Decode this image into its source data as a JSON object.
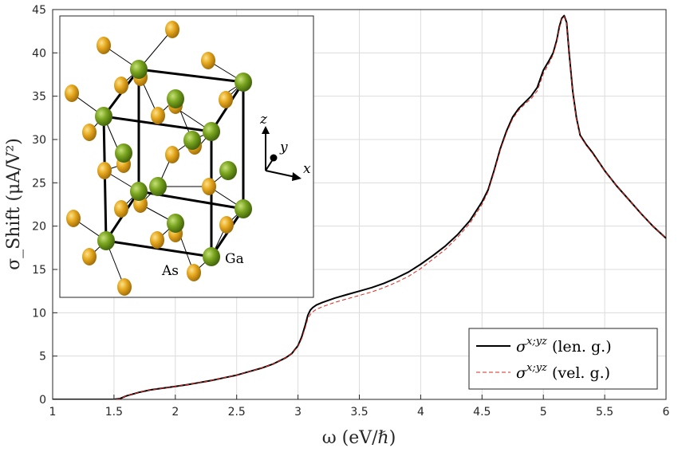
{
  "chart_data": {
    "type": "line",
    "title": "",
    "xlabel": "ω (eV/ℏ)",
    "ylabel": "σ_Shift (μA/V²)",
    "xlim": [
      1,
      6
    ],
    "ylim": [
      0,
      45
    ],
    "x_ticks": [
      "1",
      "1.5",
      "2",
      "2.5",
      "3",
      "3.5",
      "4",
      "4.5",
      "5",
      "5.5",
      "6"
    ],
    "y_ticks": [
      "0",
      "5",
      "10",
      "15",
      "20",
      "25",
      "30",
      "35",
      "40",
      "45"
    ],
    "grid": true,
    "legend_position": "bottom-right",
    "series": [
      {
        "name": "σ^{x;yz} (len. g.)",
        "legend_main": "σ",
        "legend_sup": "x;yz",
        "legend_tail": "(len. g.)",
        "style": "solid",
        "color": "#000000",
        "x": [
          1.0,
          1.5,
          1.55,
          1.6,
          1.7,
          1.8,
          1.9,
          2.0,
          2.1,
          2.2,
          2.3,
          2.4,
          2.5,
          2.6,
          2.7,
          2.8,
          2.9,
          2.95,
          3.0,
          3.03,
          3.06,
          3.08,
          3.1,
          3.12,
          3.15,
          3.2,
          3.3,
          3.4,
          3.5,
          3.6,
          3.7,
          3.8,
          3.9,
          4.0,
          4.1,
          4.2,
          4.3,
          4.4,
          4.5,
          4.55,
          4.6,
          4.65,
          4.7,
          4.75,
          4.8,
          4.85,
          4.9,
          4.95,
          5.0,
          5.05,
          5.08,
          5.11,
          5.13,
          5.15,
          5.17,
          5.19,
          5.21,
          5.24,
          5.27,
          5.3,
          5.35,
          5.4,
          5.5,
          5.6,
          5.7,
          5.8,
          5.9,
          6.0
        ],
        "y": [
          0,
          0,
          0.1,
          0.4,
          0.8,
          1.1,
          1.3,
          1.5,
          1.7,
          1.95,
          2.2,
          2.5,
          2.8,
          3.2,
          3.6,
          4.1,
          4.8,
          5.3,
          6.2,
          7.2,
          8.6,
          9.7,
          10.3,
          10.6,
          10.9,
          11.2,
          11.7,
          12.1,
          12.5,
          12.9,
          13.4,
          14.0,
          14.7,
          15.6,
          16.6,
          17.7,
          19.0,
          20.6,
          22.8,
          24.2,
          26.5,
          29.0,
          31.0,
          32.6,
          33.6,
          34.3,
          35.0,
          36.0,
          38.0,
          39.2,
          40.0,
          41.5,
          43.0,
          44.0,
          44.3,
          43.5,
          40.0,
          35.5,
          32.5,
          30.5,
          29.4,
          28.5,
          26.4,
          24.6,
          23.0,
          21.4,
          19.9,
          18.6
        ]
      },
      {
        "name": "σ^{x;yz} (vel. g.)",
        "legend_main": "σ",
        "legend_sup": "x;yz",
        "legend_tail": "(vel. g.)",
        "style": "dashed",
        "color": "#e0241b",
        "x": [
          1.0,
          1.5,
          1.55,
          1.6,
          1.7,
          1.8,
          1.9,
          2.0,
          2.1,
          2.2,
          2.3,
          2.4,
          2.5,
          2.6,
          2.7,
          2.8,
          2.9,
          2.95,
          3.0,
          3.03,
          3.06,
          3.08,
          3.1,
          3.12,
          3.15,
          3.2,
          3.3,
          3.4,
          3.5,
          3.6,
          3.7,
          3.8,
          3.9,
          4.0,
          4.1,
          4.2,
          4.3,
          4.4,
          4.5,
          4.55,
          4.6,
          4.65,
          4.7,
          4.75,
          4.8,
          4.85,
          4.9,
          4.95,
          5.0,
          5.05,
          5.08,
          5.11,
          5.13,
          5.15,
          5.17,
          5.19,
          5.21,
          5.24,
          5.27,
          5.3,
          5.35,
          5.4,
          5.5,
          5.6,
          5.7,
          5.8,
          5.9,
          6.0
        ],
        "y": [
          0,
          0,
          0.1,
          0.4,
          0.8,
          1.1,
          1.3,
          1.5,
          1.7,
          1.95,
          2.2,
          2.5,
          2.8,
          3.2,
          3.6,
          4.1,
          4.8,
          5.3,
          6.1,
          7.0,
          8.3,
          9.3,
          9.8,
          10.1,
          10.4,
          10.7,
          11.2,
          11.6,
          12.0,
          12.4,
          12.9,
          13.5,
          14.2,
          15.1,
          16.2,
          17.3,
          18.7,
          20.3,
          22.5,
          24.0,
          26.3,
          28.8,
          30.8,
          32.4,
          33.4,
          34.1,
          34.7,
          35.6,
          37.6,
          38.9,
          39.8,
          41.3,
          42.8,
          43.9,
          44.2,
          43.4,
          39.9,
          35.4,
          32.4,
          30.4,
          29.3,
          28.4,
          26.4,
          24.6,
          23.0,
          21.4,
          19.9,
          18.6
        ]
      }
    ]
  },
  "inset": {
    "labels": {
      "as": "As",
      "ga": "Ga"
    },
    "axes": {
      "z": "z",
      "y": "y",
      "x": "x"
    },
    "colors": {
      "ga": "#7aa51f",
      "as": "#e6a81e",
      "bond": "#000000"
    }
  }
}
